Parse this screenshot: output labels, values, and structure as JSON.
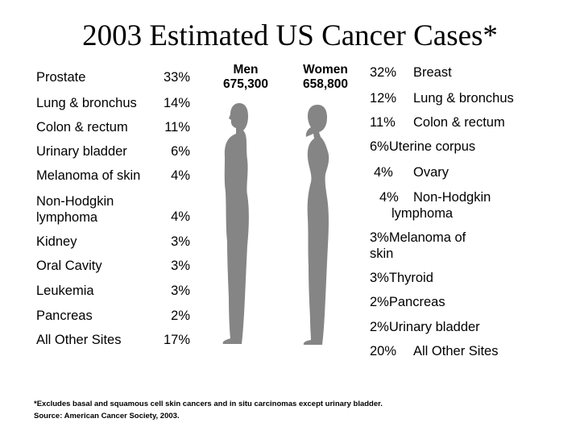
{
  "title": "2003 Estimated US Cancer Cases*",
  "men": {
    "label": "Men",
    "count": "675,300"
  },
  "women": {
    "label": "Women",
    "count": "658,800"
  },
  "men_sites": [
    {
      "name": "Prostate",
      "pct": "33%"
    },
    {
      "name": "Lung & bronchus",
      "pct": "14%"
    },
    {
      "name": "Colon & rectum",
      "pct": "11%"
    },
    {
      "name": "Urinary bladder",
      "pct": "6%"
    },
    {
      "name": "Melanoma of skin",
      "pct": "4%"
    },
    {
      "name": "Non-Hodgkin lymphoma",
      "pct": "4%"
    },
    {
      "name": "Kidney",
      "pct": "3%"
    },
    {
      "name": "Oral Cavity",
      "pct": "3%"
    },
    {
      "name": "Leukemia",
      "pct": "3%"
    },
    {
      "name": "Pancreas",
      "pct": "2%"
    },
    {
      "name": "All Other Sites",
      "pct": "17%"
    }
  ],
  "women_sites": [
    {
      "pct": "32%",
      "name": "Breast"
    },
    {
      "pct": "12%",
      "name": "Lung & bronchus"
    },
    {
      "pct": "11%",
      "name": "Colon & rectum"
    },
    {
      "pct": "6%",
      "name": "Uterine corpus"
    },
    {
      "pct": "4%",
      "name": "Ovary"
    },
    {
      "pct": "4%",
      "name": "Non-Hodgkin lymphoma"
    },
    {
      "pct": "3%",
      "name": "Melanoma of skin"
    },
    {
      "pct": "3%",
      "name": "Thyroid"
    },
    {
      "pct": "2%",
      "name": "Pancreas"
    },
    {
      "pct": "2%",
      "name": "Urinary bladder"
    },
    {
      "pct": "20%",
      "name": "All Other Sites"
    }
  ],
  "footnote": "*Excludes basal and squamous cell skin cancers and in situ carcinomas except urinary bladder.",
  "source": "Source: American Cancer Society, 2003.",
  "colors": {
    "silhouette": "#858585"
  }
}
